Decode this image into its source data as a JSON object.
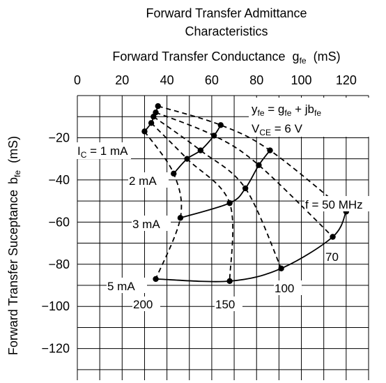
{
  "chart_data": {
    "type": "line",
    "title": [
      "Forward Transfer Admittance",
      "Characteristics"
    ],
    "xlabel": "Forward Transfer Conductance",
    "xlabel_symbol": "g",
    "xlabel_sub": "fe",
    "xlabel_unit": "(mS)",
    "ylabel": "Forward Transfer Suceptance",
    "ylabel_symbol": "b",
    "ylabel_sub": "fe",
    "ylabel_unit": "(mS)",
    "x_ticks": [
      "0",
      "20",
      "40",
      "60",
      "80",
      "100",
      "120"
    ],
    "y_ticks": [
      "−20",
      "−40",
      "−60",
      "−80",
      "−100",
      "−120"
    ],
    "xlim": [
      0,
      130
    ],
    "ylim": [
      -135,
      0
    ],
    "x_axis_position": "top",
    "grid": true,
    "equation": {
      "line1": [
        "y",
        "fe",
        " = g",
        "fe",
        " + jb",
        "fe"
      ],
      "line2": [
        "V",
        "CE",
        " = 6 V"
      ]
    },
    "current_labels": [
      "1 mA",
      "2 mA",
      "3 mA",
      "5 mA"
    ],
    "current_prefix": "I",
    "current_prefix_sub": "C",
    "current_prefix_eq": " = ",
    "frequency_labels": [
      "f = 50 MHz",
      "70",
      "100",
      "150",
      "200"
    ],
    "series": [
      {
        "name": "1 mA",
        "style": "solid",
        "x": [
          36,
          35,
          34,
          33,
          30
        ],
        "y": [
          -5,
          -8,
          -10,
          -13,
          -17
        ]
      },
      {
        "name": "2 mA",
        "style": "solid",
        "x": [
          64,
          61,
          55,
          49,
          43
        ],
        "y": [
          -14,
          -19,
          -26,
          -30,
          -37
        ]
      },
      {
        "name": "3 mA",
        "style": "solid",
        "x": [
          86,
          81,
          75,
          68,
          46
        ],
        "y": [
          -26,
          -33,
          -44,
          -51,
          -58
        ]
      },
      {
        "name": "5 mA",
        "style": "solid",
        "x": [
          120,
          114,
          91,
          68,
          35
        ],
        "y": [
          -55,
          -67,
          -82,
          -88,
          -87
        ]
      },
      {
        "name": "50 MHz",
        "style": "dashed",
        "x": [
          36,
          64,
          86,
          120
        ],
        "y": [
          -5,
          -14,
          -26,
          -55
        ]
      },
      {
        "name": "70",
        "style": "dashed",
        "x": [
          35,
          61,
          81,
          114
        ],
        "y": [
          -8,
          -19,
          -33,
          -67
        ]
      },
      {
        "name": "100",
        "style": "dashed",
        "x": [
          34,
          55,
          75,
          91
        ],
        "y": [
          -10,
          -26,
          -44,
          -82
        ]
      },
      {
        "name": "150",
        "style": "dashed",
        "x": [
          33,
          49,
          68,
          68
        ],
        "y": [
          -13,
          -30,
          -51,
          -88
        ]
      },
      {
        "name": "200",
        "style": "dashed",
        "x": [
          30,
          43,
          46,
          35
        ],
        "y": [
          -17,
          -37,
          -58,
          -87
        ]
      }
    ]
  }
}
